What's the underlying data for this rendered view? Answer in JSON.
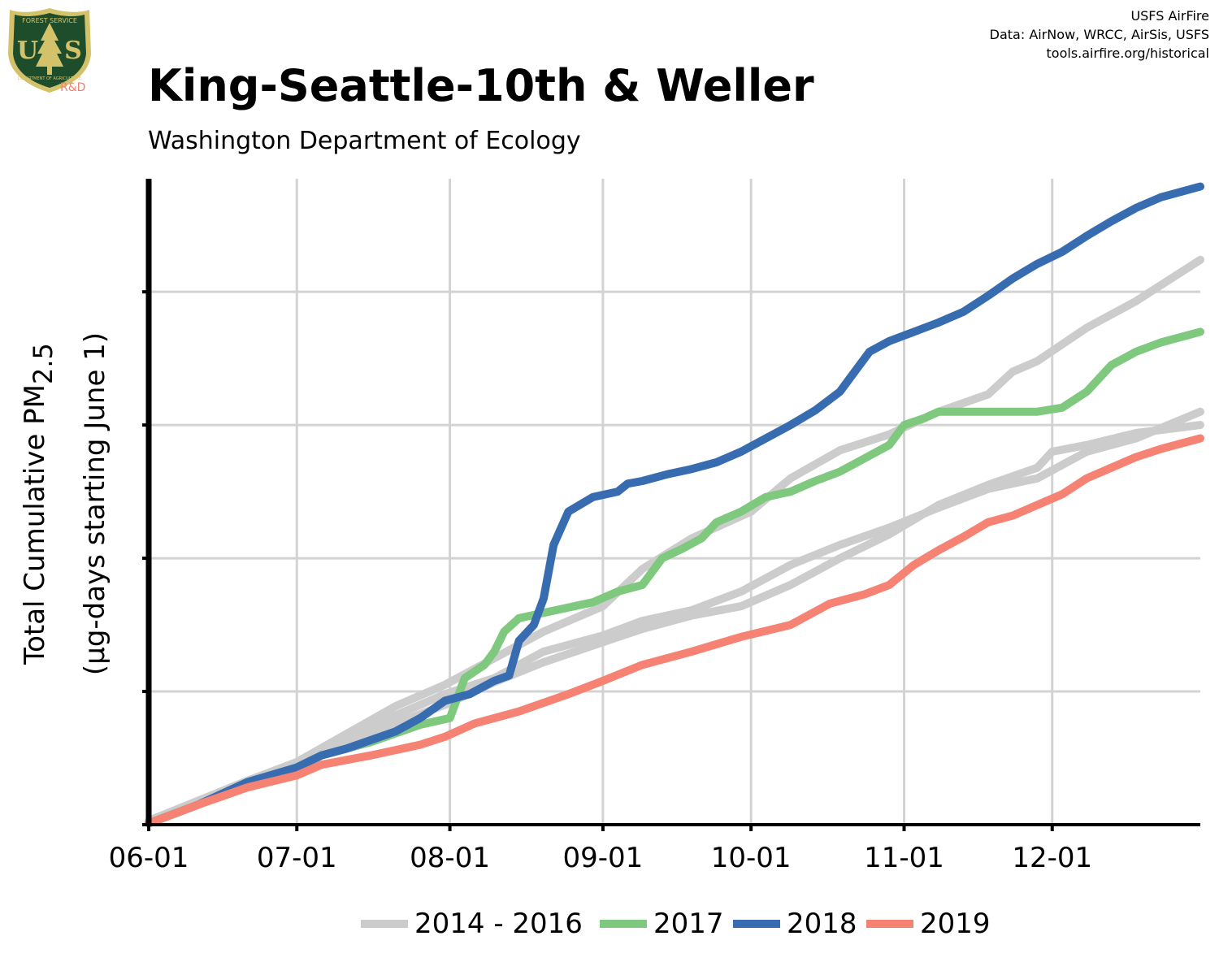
{
  "header": {
    "title": "King-Seattle-10th & Weller",
    "subtitle": "Washington Department of Ecology",
    "credits": [
      "USFS AirFire",
      "Data: AirNow, WRCC, AirSis, USFS",
      "tools.airfire.org/historical"
    ],
    "logo": {
      "icon": "usfs-shield-icon",
      "top_text": "FOREST SERVICE",
      "letters": "US",
      "bottom_text": "DEPARTMENT OF AGRICULTURE",
      "badge": "R&D",
      "colors": {
        "shield": "#1e4d2b",
        "border": "#d4c26a",
        "badge": "#f08070"
      }
    }
  },
  "chart_data": {
    "type": "line",
    "ylabel_main": "Total Cumulative PM",
    "ylabel_sub": "2.5",
    "ylabel_units": "(µg-days starting June 1)",
    "x_tick_labels": [
      "06-01",
      "07-01",
      "08-01",
      "09-01",
      "10-01",
      "11-01",
      "12-01"
    ],
    "x_ticks_day": [
      0,
      30,
      61,
      92,
      122,
      153,
      183
    ],
    "xlim_days": [
      0,
      213
    ],
    "ylim": [
      0,
      48
    ],
    "y_ticks": [
      0,
      10,
      20,
      30,
      40
    ],
    "y_tick_labels_shown": false,
    "grid": true,
    "legend_position": "bottom",
    "series": [
      {
        "name": "2014 - 2016",
        "color": "#cccccc",
        "points": [
          [
            0,
            0.3
          ],
          [
            10,
            1.8
          ],
          [
            20,
            3.3
          ],
          [
            30,
            4.7
          ],
          [
            40,
            6.8
          ],
          [
            50,
            8.9
          ],
          [
            60,
            10.5
          ],
          [
            70,
            12.5
          ],
          [
            80,
            14.5
          ],
          [
            92,
            16.4
          ],
          [
            100,
            19.2
          ],
          [
            110,
            21.5
          ],
          [
            122,
            23.5
          ],
          [
            130,
            26.0
          ],
          [
            140,
            28.1
          ],
          [
            150,
            29.3
          ],
          [
            160,
            31.0
          ],
          [
            170,
            32.3
          ],
          [
            175,
            34.0
          ],
          [
            180,
            34.8
          ],
          [
            190,
            37.3
          ],
          [
            200,
            39.3
          ],
          [
            213,
            42.4
          ]
        ]
      },
      {
        "name": "2014 - 2016",
        "color": "#cccccc",
        "points": [
          [
            0,
            0.2
          ],
          [
            10,
            1.8
          ],
          [
            20,
            3.2
          ],
          [
            30,
            4.6
          ],
          [
            40,
            6.4
          ],
          [
            50,
            8.2
          ],
          [
            60,
            9.8
          ],
          [
            70,
            11.0
          ],
          [
            80,
            13.0
          ],
          [
            92,
            14.2
          ],
          [
            100,
            15.3
          ],
          [
            110,
            16.1
          ],
          [
            120,
            17.5
          ],
          [
            130,
            19.5
          ],
          [
            140,
            21.0
          ],
          [
            150,
            22.3
          ],
          [
            160,
            23.8
          ],
          [
            170,
            25.2
          ],
          [
            180,
            26.0
          ],
          [
            190,
            28.0
          ],
          [
            200,
            29.0
          ],
          [
            213,
            31.0
          ]
        ]
      },
      {
        "name": "2014 - 2016",
        "color": "#cccccc",
        "points": [
          [
            0,
            0.2
          ],
          [
            10,
            1.7
          ],
          [
            20,
            3.0
          ],
          [
            30,
            4.5
          ],
          [
            40,
            6.0
          ],
          [
            50,
            7.6
          ],
          [
            60,
            9.0
          ],
          [
            70,
            10.7
          ],
          [
            80,
            12.2
          ],
          [
            92,
            13.7
          ],
          [
            100,
            14.7
          ],
          [
            110,
            15.7
          ],
          [
            120,
            16.4
          ],
          [
            130,
            18.0
          ],
          [
            140,
            20.0
          ],
          [
            150,
            21.8
          ],
          [
            160,
            24.0
          ],
          [
            170,
            25.5
          ],
          [
            180,
            26.8
          ],
          [
            183,
            28.0
          ],
          [
            190,
            28.5
          ],
          [
            200,
            29.4
          ],
          [
            213,
            30.0
          ]
        ]
      },
      {
        "name": "2017",
        "color": "#7fc97f",
        "points": [
          [
            0,
            0.1
          ],
          [
            10,
            1.5
          ],
          [
            20,
            2.9
          ],
          [
            30,
            4.3
          ],
          [
            35,
            5.2
          ],
          [
            45,
            6.2
          ],
          [
            55,
            7.5
          ],
          [
            61,
            8.0
          ],
          [
            64,
            11.0
          ],
          [
            68,
            12.0
          ],
          [
            70,
            13.0
          ],
          [
            72,
            14.5
          ],
          [
            75,
            15.5
          ],
          [
            80,
            15.9
          ],
          [
            90,
            16.7
          ],
          [
            95,
            17.5
          ],
          [
            100,
            18.0
          ],
          [
            104,
            20.0
          ],
          [
            108,
            20.7
          ],
          [
            112,
            21.5
          ],
          [
            115,
            22.7
          ],
          [
            120,
            23.5
          ],
          [
            125,
            24.6
          ],
          [
            130,
            25.0
          ],
          [
            135,
            25.8
          ],
          [
            140,
            26.5
          ],
          [
            145,
            27.5
          ],
          [
            150,
            28.5
          ],
          [
            153,
            30.0
          ],
          [
            157,
            30.5
          ],
          [
            160,
            31.0
          ],
          [
            165,
            31.0
          ],
          [
            180,
            31.0
          ],
          [
            185,
            31.3
          ],
          [
            190,
            32.5
          ],
          [
            195,
            34.5
          ],
          [
            200,
            35.5
          ],
          [
            205,
            36.2
          ],
          [
            213,
            37.0
          ]
        ]
      },
      {
        "name": "2018",
        "color": "#386cb0",
        "points": [
          [
            0,
            0.1
          ],
          [
            10,
            1.5
          ],
          [
            20,
            3.2
          ],
          [
            30,
            4.3
          ],
          [
            35,
            5.2
          ],
          [
            40,
            5.7
          ],
          [
            50,
            7.0
          ],
          [
            55,
            8.0
          ],
          [
            60,
            9.3
          ],
          [
            65,
            9.8
          ],
          [
            70,
            10.8
          ],
          [
            73,
            11.2
          ],
          [
            75,
            13.8
          ],
          [
            78,
            15.0
          ],
          [
            80,
            17.0
          ],
          [
            82,
            21.0
          ],
          [
            85,
            23.5
          ],
          [
            90,
            24.6
          ],
          [
            95,
            25.0
          ],
          [
            97,
            25.6
          ],
          [
            100,
            25.8
          ],
          [
            105,
            26.3
          ],
          [
            110,
            26.7
          ],
          [
            115,
            27.2
          ],
          [
            120,
            28.0
          ],
          [
            125,
            29.0
          ],
          [
            130,
            30.0
          ],
          [
            135,
            31.1
          ],
          [
            140,
            32.5
          ],
          [
            143,
            34.0
          ],
          [
            146,
            35.5
          ],
          [
            150,
            36.3
          ],
          [
            155,
            37.0
          ],
          [
            160,
            37.7
          ],
          [
            165,
            38.5
          ],
          [
            170,
            39.7
          ],
          [
            175,
            41.0
          ],
          [
            180,
            42.1
          ],
          [
            185,
            43.0
          ],
          [
            190,
            44.2
          ],
          [
            195,
            45.3
          ],
          [
            200,
            46.3
          ],
          [
            205,
            47.1
          ],
          [
            213,
            47.9
          ]
        ]
      },
      {
        "name": "2019",
        "color": "#f58272",
        "points": [
          [
            0,
            0.1
          ],
          [
            10,
            1.5
          ],
          [
            20,
            2.8
          ],
          [
            30,
            3.7
          ],
          [
            35,
            4.5
          ],
          [
            45,
            5.2
          ],
          [
            55,
            6.0
          ],
          [
            60,
            6.6
          ],
          [
            66,
            7.6
          ],
          [
            75,
            8.5
          ],
          [
            85,
            9.8
          ],
          [
            92,
            10.8
          ],
          [
            100,
            12.0
          ],
          [
            110,
            13.0
          ],
          [
            120,
            14.1
          ],
          [
            130,
            15.0
          ],
          [
            138,
            16.6
          ],
          [
            145,
            17.3
          ],
          [
            150,
            18.0
          ],
          [
            155,
            19.5
          ],
          [
            160,
            20.6
          ],
          [
            165,
            21.6
          ],
          [
            170,
            22.7
          ],
          [
            175,
            23.2
          ],
          [
            180,
            24.0
          ],
          [
            185,
            24.8
          ],
          [
            190,
            26.0
          ],
          [
            195,
            26.8
          ],
          [
            200,
            27.6
          ],
          [
            205,
            28.2
          ],
          [
            213,
            29.0
          ]
        ]
      }
    ],
    "legend": [
      {
        "label": "2014 - 2016",
        "color": "#cccccc"
      },
      {
        "label": "2017",
        "color": "#7fc97f"
      },
      {
        "label": "2018",
        "color": "#386cb0"
      },
      {
        "label": "2019",
        "color": "#f58272"
      }
    ]
  }
}
